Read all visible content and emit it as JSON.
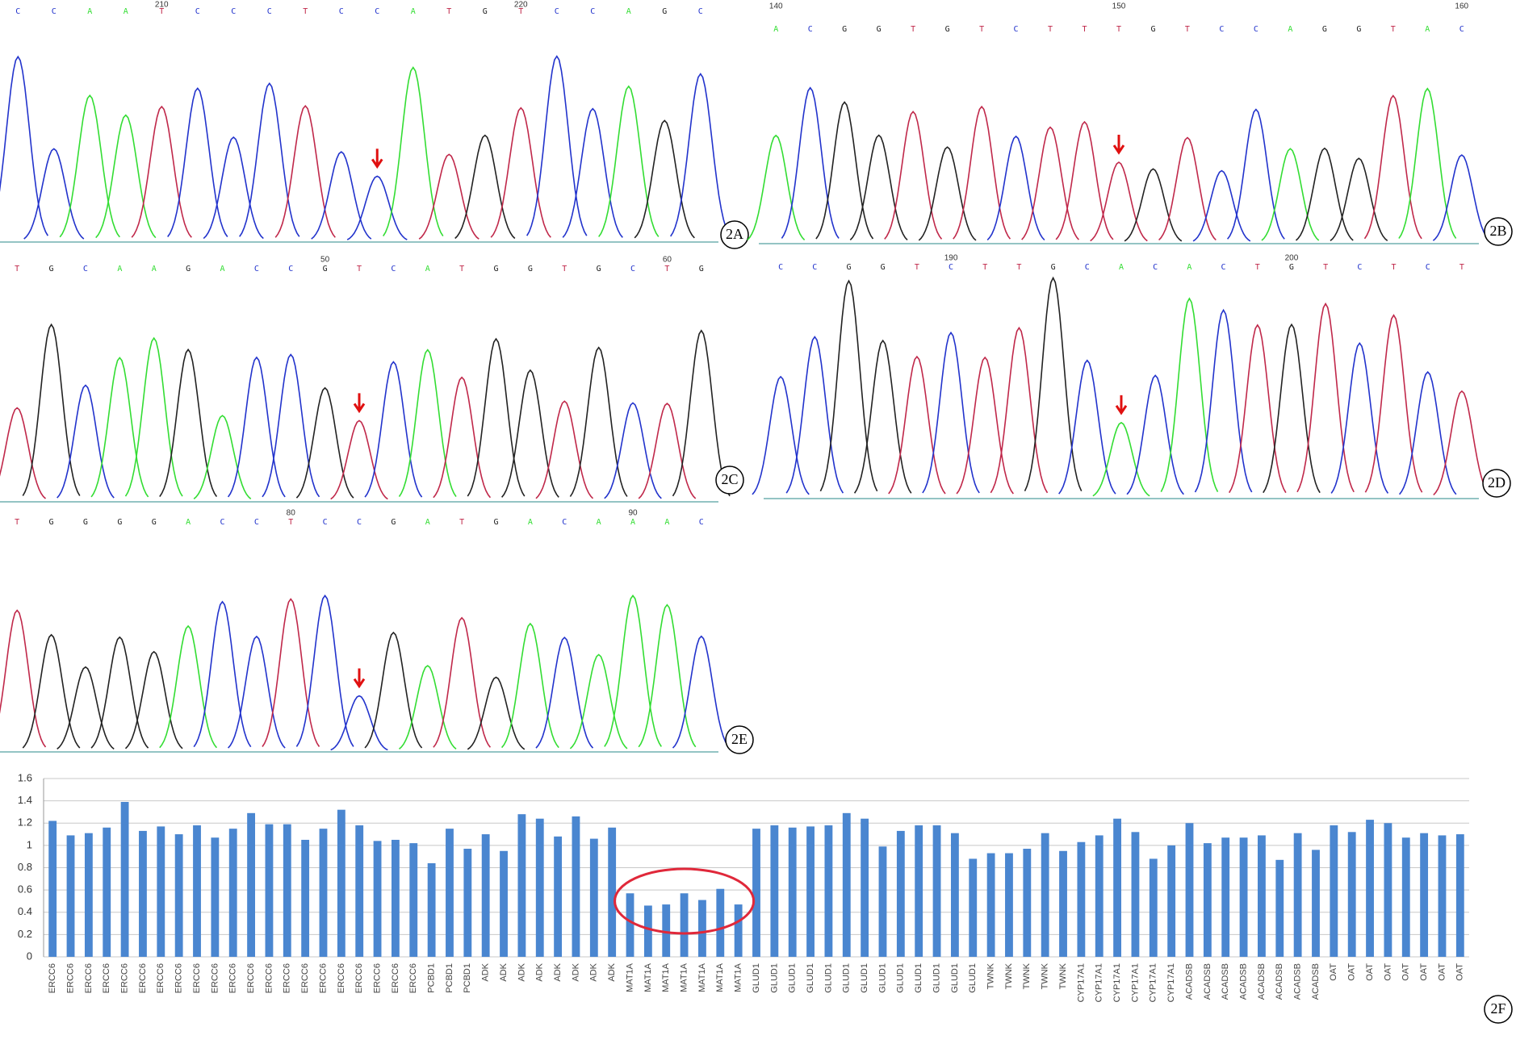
{
  "panels": [
    {
      "label": "2A",
      "bases": [
        "C",
        "C",
        "A",
        "A",
        "T",
        "C",
        "C",
        "C",
        "T",
        "C",
        "C",
        "A",
        "T",
        "G",
        "T",
        "C",
        "C",
        "A",
        "G",
        "C"
      ],
      "positions": [
        null,
        null,
        null,
        null,
        "210",
        null,
        null,
        null,
        null,
        null,
        null,
        null,
        null,
        null,
        "220",
        null,
        null,
        null,
        null,
        null
      ]
    },
    {
      "label": "2B",
      "bases": [
        "A",
        "C",
        "G",
        "G",
        "T",
        "G",
        "T",
        "C",
        "T",
        "T",
        "T",
        "G",
        "T",
        "C",
        "C",
        "A",
        "G",
        "G",
        "T",
        "A",
        "C"
      ],
      "positions": [
        "140",
        null,
        null,
        null,
        null,
        null,
        null,
        null,
        null,
        null,
        "150",
        null,
        null,
        null,
        null,
        null,
        null,
        null,
        null,
        null,
        "160"
      ]
    },
    {
      "label": "2C",
      "bases": [
        "T",
        "G",
        "C",
        "A",
        "A",
        "G",
        "A",
        "C",
        "C",
        "G",
        "T",
        "C",
        "A",
        "T",
        "G",
        "G",
        "T",
        "G",
        "C",
        "T",
        "G"
      ],
      "positions": [
        null,
        null,
        null,
        null,
        null,
        null,
        null,
        null,
        null,
        "50",
        null,
        null,
        null,
        null,
        null,
        null,
        null,
        null,
        null,
        "60",
        null
      ]
    },
    {
      "label": "2D",
      "bases": [
        "C",
        "C",
        "G",
        "G",
        "T",
        "C",
        "T",
        "T",
        "G",
        "C",
        "A",
        "C",
        "A",
        "C",
        "T",
        "G",
        "T",
        "C",
        "T",
        "C",
        "T"
      ],
      "positions": [
        null,
        null,
        null,
        null,
        null,
        "190",
        null,
        null,
        null,
        null,
        null,
        null,
        null,
        null,
        null,
        "200",
        null,
        null,
        null,
        null,
        null
      ]
    },
    {
      "label": "2E",
      "bases": [
        "T",
        "G",
        "G",
        "G",
        "G",
        "A",
        "C",
        "C",
        "T",
        "C",
        "C",
        "G",
        "A",
        "T",
        "G",
        "A",
        "C",
        "A",
        "A",
        "A",
        "C"
      ],
      "positions": [
        null,
        null,
        null,
        null,
        null,
        null,
        null,
        null,
        "80",
        null,
        null,
        null,
        null,
        null,
        null,
        null,
        null,
        null,
        "90",
        null,
        null
      ]
    }
  ],
  "chart_data": {
    "type": "bar",
    "annotation": "2F",
    "categories": [
      "ERCC6",
      "ERCC6",
      "ERCC6",
      "ERCC6",
      "ERCC6",
      "ERCC6",
      "ERCC6",
      "ERCC6",
      "ERCC6",
      "ERCC6",
      "ERCC6",
      "ERCC6",
      "ERCC6",
      "ERCC6",
      "ERCC6",
      "ERCC6",
      "ERCC6",
      "ERCC6",
      "ERCC6",
      "ERCC6",
      "ERCC6",
      "PCBD1",
      "PCBD1",
      "PCBD1",
      "ADK",
      "ADK",
      "ADK",
      "ADK",
      "ADK",
      "ADK",
      "ADK",
      "ADK",
      "MAT1A",
      "MAT1A",
      "MAT1A",
      "MAT1A",
      "MAT1A",
      "MAT1A",
      "MAT1A",
      "GLUD1",
      "GLUD1",
      "GLUD1",
      "GLUD1",
      "GLUD1",
      "GLUD1",
      "GLUD1",
      "GLUD1",
      "GLUD1",
      "GLUD1",
      "GLUD1",
      "GLUD1",
      "GLUD1",
      "TWNK",
      "TWNK",
      "TWNK",
      "TWNK",
      "TWNK",
      "CYP17A1",
      "CYP17A1",
      "CYP17A1",
      "CYP17A1",
      "CYP17A1",
      "CYP17A1",
      "ACADSB",
      "ACADSB",
      "ACADSB",
      "ACADSB",
      "ACADSB",
      "ACADSB",
      "ACADSB",
      "ACADSB",
      "OAT",
      "OAT",
      "OAT",
      "OAT",
      "OAT",
      "OAT",
      "OAT",
      "OAT"
    ],
    "values": [
      1.22,
      1.09,
      1.11,
      1.16,
      1.39,
      1.13,
      1.17,
      1.1,
      1.18,
      1.07,
      1.15,
      1.29,
      1.19,
      1.19,
      1.05,
      1.15,
      1.32,
      1.18,
      1.04,
      1.05,
      1.02,
      0.84,
      1.15,
      0.97,
      1.1,
      0.95,
      1.28,
      1.24,
      1.08,
      1.26,
      1.06,
      1.16,
      0.57,
      0.46,
      0.47,
      0.57,
      0.51,
      0.61,
      0.47,
      1.15,
      1.18,
      1.16,
      1.17,
      1.18,
      1.29,
      1.24,
      0.99,
      1.13,
      1.18,
      1.18,
      1.11,
      0.88,
      0.93,
      0.93,
      0.97,
      1.11,
      0.95,
      1.03,
      1.09,
      1.24,
      1.12,
      0.88,
      1.0,
      1.2,
      1.02,
      1.07,
      1.07,
      1.09,
      0.87,
      1.11,
      0.96,
      1.18,
      1.12,
      1.23,
      1.2,
      1.07,
      1.11,
      1.09,
      1.1
    ],
    "color": "#4a86d0",
    "ylim": [
      0,
      1.6
    ],
    "yticks": [
      0,
      0.2,
      0.4,
      0.6,
      0.8,
      1,
      1.2,
      1.4,
      1.6
    ],
    "grid": true
  }
}
